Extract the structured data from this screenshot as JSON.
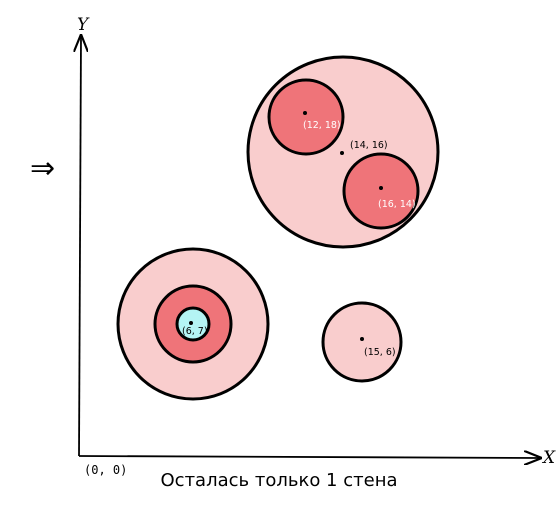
{
  "arrow_symbol": "⇒",
  "axes": {
    "x_label": "X",
    "y_label": "Y",
    "origin_label": "(0, 0)"
  },
  "caption": "Осталась только 1 стена",
  "colors": {
    "outer_fill": "#f9cdcd",
    "mid_fill": "#ef7479",
    "inner_fill": "#b4f4f4",
    "stroke": "#000000"
  },
  "groups": [
    {
      "id": "top-right",
      "circles": [
        {
          "name": "big-circle",
          "level": "outer",
          "label": "(14,  16)"
        },
        {
          "name": "circle-12-18",
          "level": "mid",
          "label": "(12, 18)"
        },
        {
          "name": "circle-16-14",
          "level": "mid",
          "label": "(16, 14)"
        }
      ]
    },
    {
      "id": "bottom-left",
      "circles": [
        {
          "name": "outer-ring",
          "level": "outer",
          "label": ""
        },
        {
          "name": "middle-ring",
          "level": "mid",
          "label": ""
        },
        {
          "name": "circle-6-7",
          "level": "inner",
          "label": "(6, 7)"
        }
      ]
    },
    {
      "id": "bottom-right",
      "circles": [
        {
          "name": "circle-15-6",
          "level": "outer",
          "label": "(15, 6)"
        }
      ]
    }
  ]
}
